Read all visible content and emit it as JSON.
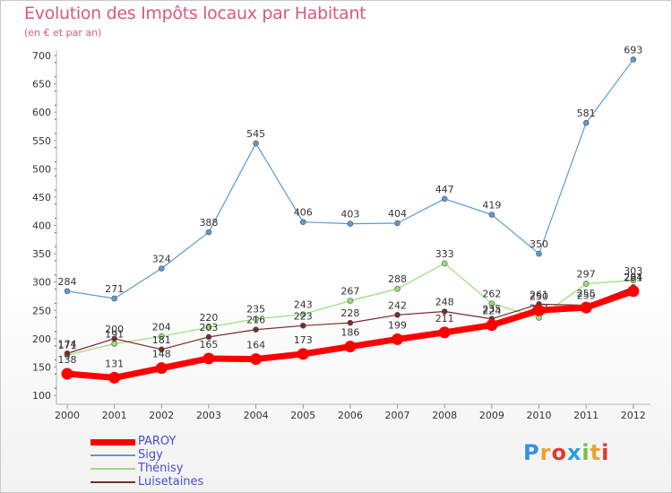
{
  "header": {
    "title": "Evolution des Impôts locaux par Habitant",
    "subtitle": "(en € et par an)"
  },
  "brand": {
    "letters": [
      "P",
      "r",
      "o",
      "x",
      "i",
      "t",
      "i"
    ],
    "colors": [
      "#3a8fd8",
      "#f0a030",
      "#e03a2a",
      "#2aa0d8",
      "#7ac040",
      "#f0a030",
      "#e03a2a"
    ]
  },
  "chart_data": {
    "type": "line",
    "x": [
      "2000",
      "2001",
      "2002",
      "2003",
      "2004",
      "2005",
      "2006",
      "2007",
      "2008",
      "2009",
      "2010",
      "2011",
      "2012"
    ],
    "ylim": [
      100,
      700
    ],
    "yticks": [
      100,
      150,
      200,
      250,
      300,
      350,
      400,
      450,
      500,
      550,
      600,
      650,
      700
    ],
    "grid": false,
    "legend_position": "bottom-left",
    "series": [
      {
        "name": "PAROY",
        "color": "#ff0000",
        "values": [
          138,
          131,
          148,
          165,
          164,
          173,
          186,
          199,
          211,
          224,
          250,
          255,
          284
        ]
      },
      {
        "name": "Sigy",
        "color": "#5b9bd0",
        "values": [
          284,
          271,
          324,
          388,
          545,
          406,
          403,
          404,
          447,
          419,
          350,
          581,
          693
        ]
      },
      {
        "name": "Thénisy",
        "color": "#99dd77",
        "values": [
          171,
          191,
          204,
          220,
          235,
          243,
          267,
          288,
          333,
          262,
          237,
          297,
          303
        ]
      },
      {
        "name": "Luisetaines",
        "color": "#7a2a2a",
        "values": [
          174,
          200,
          181,
          203,
          216,
          223,
          228,
          242,
          248,
          235,
          261,
          259,
          291
        ]
      }
    ]
  }
}
